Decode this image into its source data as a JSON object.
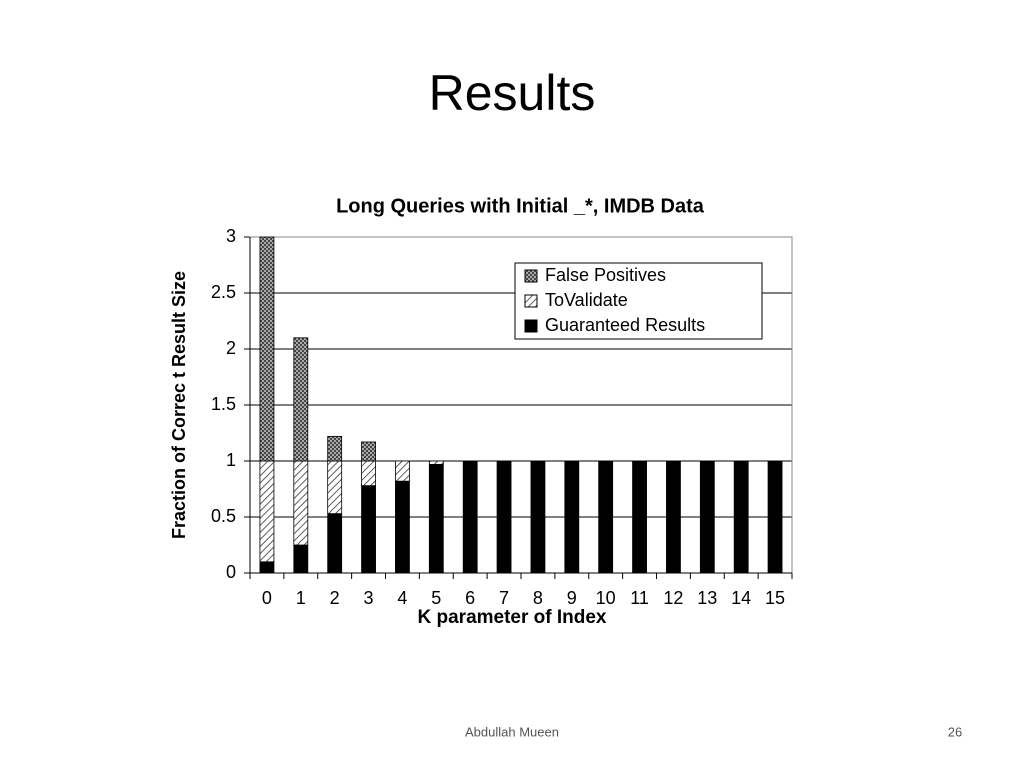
{
  "slide": {
    "title": "Results",
    "footer": "Abdullah Mueen",
    "page": 26
  },
  "chart_data": {
    "type": "stacked-bar",
    "title": "Long Queries with Initial _*, IMDB Data",
    "x_label": "K parameter of Index",
    "y_label": "Fraction of Correc t Result Size",
    "categories": [
      "0",
      "1",
      "2",
      "3",
      "4",
      "5",
      "6",
      "7",
      "8",
      "9",
      "10",
      "11",
      "12",
      "13",
      "14",
      "15"
    ],
    "series": [
      {
        "name": "Guaranteed Results",
        "color": "#000000",
        "pattern": "solid",
        "values": [
          0.1,
          0.25,
          0.53,
          0.78,
          0.82,
          0.97,
          1,
          1,
          1,
          1,
          1,
          1,
          1,
          1,
          1,
          1
        ]
      },
      {
        "name": "ToValidate",
        "color": "#000000",
        "pattern": "diagonal",
        "values": [
          0.9,
          0.75,
          0.47,
          0.22,
          0.18,
          0.03,
          0,
          0,
          0,
          0,
          0,
          0,
          0,
          0,
          0,
          0
        ]
      },
      {
        "name": "False Positives",
        "color": "#000000",
        "pattern": "crosshatch",
        "values": [
          2.0,
          1.1,
          0.22,
          0.17,
          0,
          0,
          0,
          0,
          0,
          0,
          0,
          0,
          0,
          0,
          0,
          0
        ]
      }
    ],
    "ylim": [
      0,
      3
    ],
    "yticks": [
      0,
      0.5,
      1,
      1.5,
      2,
      2.5,
      3
    ],
    "grid": true,
    "legend": "top-right"
  }
}
